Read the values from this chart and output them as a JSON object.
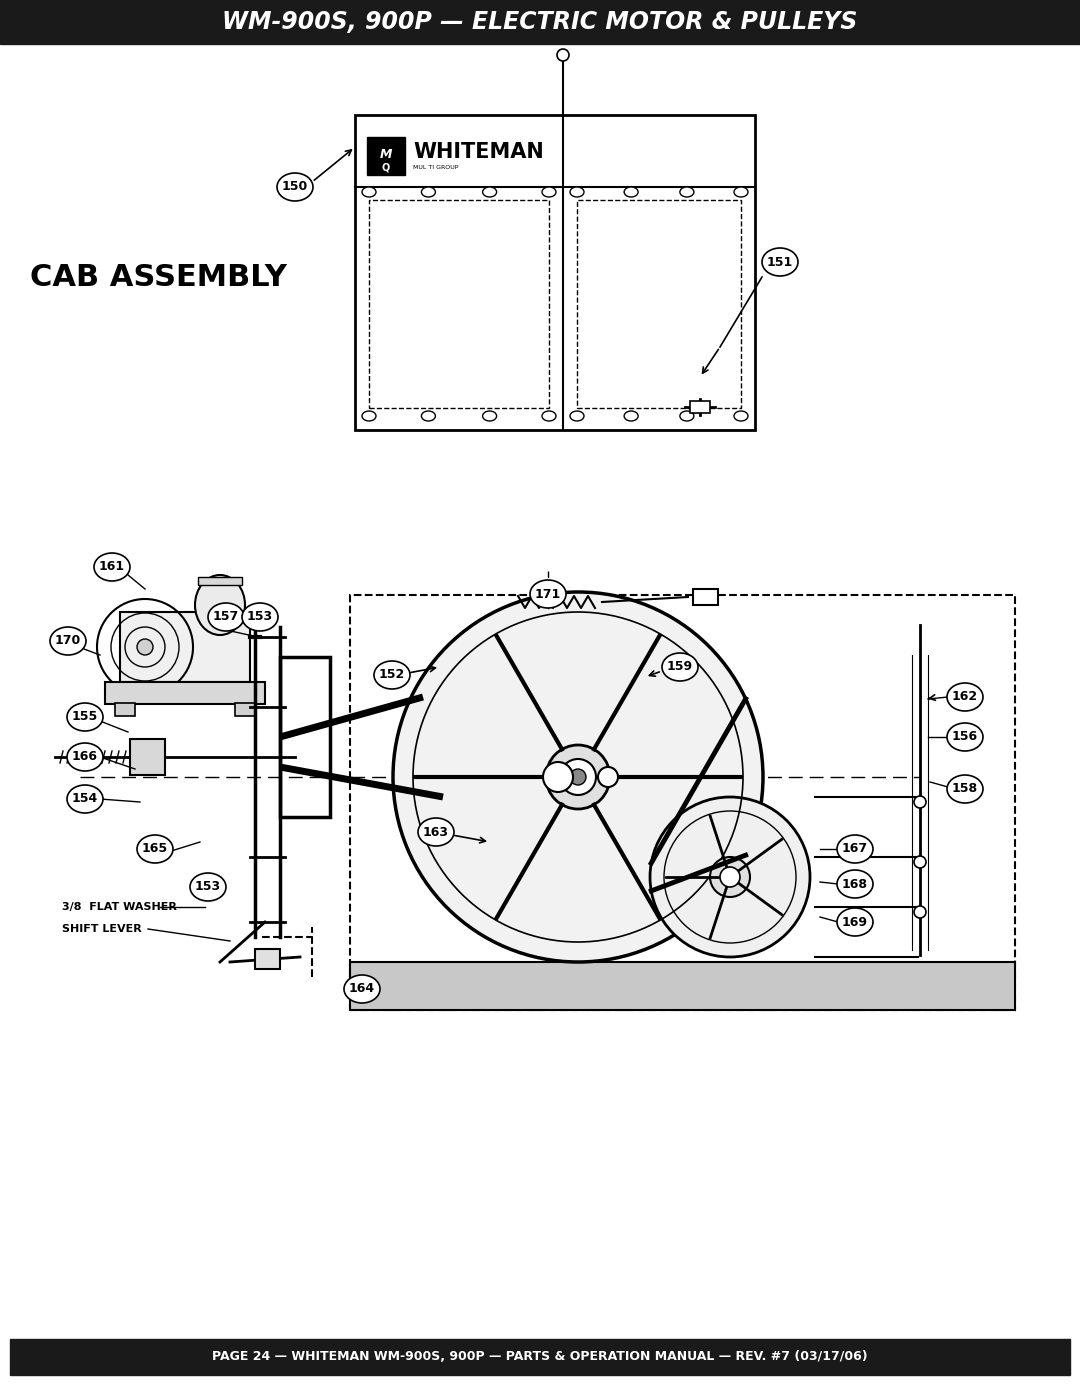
{
  "title": "WM-900S, 900P — ELECTRIC MOTOR & PULLEYS",
  "footer": "PAGE 24 — WHITEMAN WM-900S, 900P — PARTS & OPERATION MANUAL — REV. #7 (03/17/06)",
  "cab_assembly_label": "CAB ASSEMBLY",
  "title_bg": "#1a1a1a",
  "title_fg": "#ffffff",
  "footer_bg": "#1a1a1a",
  "footer_fg": "#ffffff",
  "page_bg": "#ffffff",
  "label_3_8_flat_washer": "3/8  FLAT WASHER",
  "label_shift_lever": "SHIFT LEVER",
  "whiteman_text": "WHITEMAN",
  "multiquip_text": "MUL TI GROUP"
}
